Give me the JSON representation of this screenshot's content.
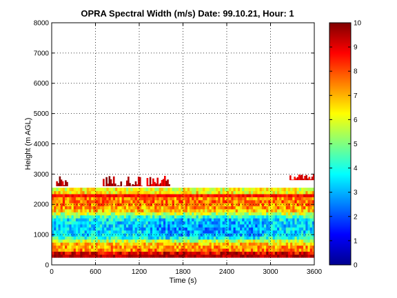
{
  "chart_data": {
    "type": "heatmap",
    "title": "OPRA Spectral Width (m/s)  Date: 99.10.21, Hour: 1",
    "xlabel": "Time (s)",
    "ylabel": "Height (m AGL)",
    "xlim": [
      0,
      3600
    ],
    "ylim": [
      0,
      8000
    ],
    "x_ticks": [
      "0",
      "600",
      "1200",
      "1800",
      "2400",
      "3000",
      "3600"
    ],
    "y_ticks": [
      "0",
      "1000",
      "2000",
      "3000",
      "4000",
      "5000",
      "6000",
      "7000",
      "8000"
    ],
    "grid": true,
    "colorbar": {
      "colormap": "jet",
      "range": [
        0,
        10
      ],
      "ticks": [
        "0",
        "1",
        "2",
        "3",
        "4",
        "5",
        "6",
        "7",
        "8",
        "9",
        "10"
      ]
    },
    "profile_heights_m": [
      300,
      400,
      500,
      600,
      700,
      800,
      900,
      1000,
      1100,
      1200,
      1300,
      1400,
      1500,
      1600,
      1700,
      1800,
      1900,
      2000,
      2100,
      2200,
      2300,
      2400,
      2500
    ],
    "profile_mean_width_ms": [
      9.5,
      9.0,
      7.5,
      7.2,
      6.8,
      5.8,
      4.2,
      3.6,
      3.4,
      3.3,
      3.4,
      3.5,
      3.7,
      4.3,
      5.6,
      6.8,
      7.2,
      7.4,
      7.6,
      7.4,
      8.6,
      6.4,
      6.1
    ],
    "echo_top_m": 2550,
    "sparse_echoes": [
      {
        "t_start": 60,
        "t_end": 220,
        "h_bottom": 2600,
        "h_top": 2950,
        "width_ms": 9.5
      },
      {
        "t_start": 700,
        "t_end": 1230,
        "h_bottom": 2600,
        "h_top": 2950,
        "width_ms": 9.6
      },
      {
        "t_start": 1300,
        "t_end": 1620,
        "h_bottom": 2600,
        "h_top": 2950,
        "width_ms": 9.2
      },
      {
        "t_start": 3260,
        "t_end": 3600,
        "h_bottom": 2800,
        "h_top": 3000,
        "width_ms": 9.0
      }
    ]
  }
}
